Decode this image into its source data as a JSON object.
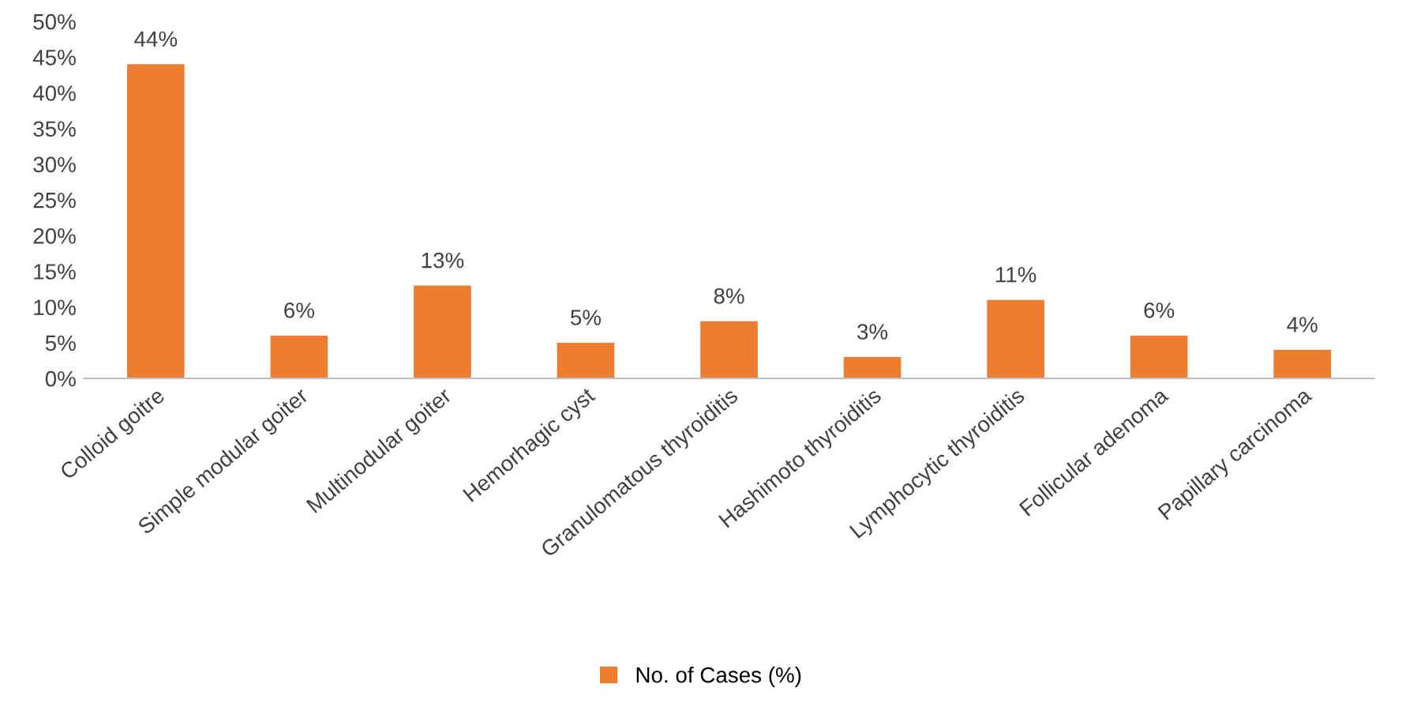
{
  "chart_data": {
    "type": "bar",
    "categories": [
      "Colloid goitre",
      "Simple modular goiter",
      "Multinodular goiter",
      "Hemorhagic cyst",
      "Granulomatous thyroiditis",
      "Hashimoto thyroiditis",
      "Lymphocytic thyroiditis",
      "Follicular adenoma",
      "Papillary carcinoma"
    ],
    "series": [
      {
        "name": "No. of Cases (%)",
        "color": "#ed7d31",
        "values": [
          44,
          6,
          13,
          5,
          8,
          3,
          11,
          6,
          4
        ],
        "value_labels": [
          "44%",
          "6%",
          "13%",
          "5%",
          "8%",
          "3%",
          "11%",
          "6%",
          "4%"
        ]
      }
    ],
    "ylim": [
      0,
      50
    ],
    "yticks": [
      {
        "value": 0,
        "label": "0%"
      },
      {
        "value": 5,
        "label": "5%"
      },
      {
        "value": 10,
        "label": "10%"
      },
      {
        "value": 15,
        "label": "15%"
      },
      {
        "value": 20,
        "label": "20%"
      },
      {
        "value": 25,
        "label": "25%"
      },
      {
        "value": 30,
        "label": "30%"
      },
      {
        "value": 35,
        "label": "35%"
      },
      {
        "value": 40,
        "label": "40%"
      },
      {
        "value": 45,
        "label": "45%"
      },
      {
        "value": 50,
        "label": "50%"
      }
    ],
    "grid": false,
    "legend": "bottom"
  }
}
